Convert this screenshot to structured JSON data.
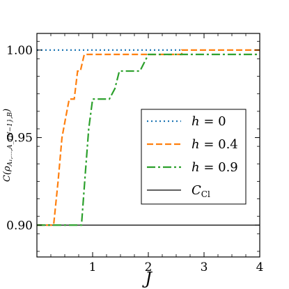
{
  "chart_data": {
    "type": "line",
    "xlabel": "J",
    "ylabel": "C(ρ_{A1,...,AN−1,B})",
    "ylabel_parts": {
      "main": "C(ρ",
      "sub": "A₁,...,A_{N−1},B",
      "close": ")"
    },
    "xlim": [
      0,
      4
    ],
    "ylim": [
      0.8818,
      1.0095
    ],
    "x_ticks": [
      1,
      2,
      3,
      4
    ],
    "x_tick_labels": [
      "1",
      "2",
      "3",
      "4"
    ],
    "y_ticks": [
      0.9,
      0.95,
      1.0
    ],
    "y_tick_labels": [
      "0.90",
      "0.95",
      "1.00"
    ],
    "grid": false,
    "legend_position": "center-right",
    "series": [
      {
        "name": "h = 0",
        "legend": {
          "italic": "h",
          "rest": " = 0"
        },
        "color": "#1f77b4",
        "style": "dotted",
        "x": [
          0,
          2.6
        ],
        "y": [
          1.0,
          1.0
        ]
      },
      {
        "name": "h = 0.4",
        "legend": {
          "italic": "h",
          "rest": " = 0.4"
        },
        "color": "#ff7f0e",
        "style": "dashed",
        "x": [
          0,
          0.3,
          0.38,
          0.45,
          0.52,
          0.58,
          0.67,
          0.73,
          0.78,
          0.85,
          2.6,
          2.6,
          4.0
        ],
        "y": [
          0.9,
          0.9,
          0.925,
          0.95,
          0.962,
          0.972,
          0.972,
          0.988,
          0.988,
          0.9975,
          0.9975,
          1.0,
          1.0
        ]
      },
      {
        "name": "h = 0.9",
        "legend": {
          "italic": "h",
          "rest": " = 0.9"
        },
        "color": "#2ca02c",
        "style": "dashdot",
        "x": [
          0,
          0.8,
          0.87,
          0.93,
          1.0,
          1.15,
          1.3,
          1.4,
          1.48,
          1.58,
          1.85,
          2.0,
          2.05,
          4.0
        ],
        "y": [
          0.9,
          0.9,
          0.93,
          0.955,
          0.972,
          0.972,
          0.972,
          0.978,
          0.988,
          0.988,
          0.988,
          0.9975,
          0.9975,
          0.9975
        ]
      },
      {
        "name": "C_Cl",
        "legend": {
          "italic": "C",
          "sub": "Cl"
        },
        "color": "#000000",
        "style": "solid",
        "x": [
          0,
          4
        ],
        "y": [
          0.9,
          0.9
        ]
      }
    ]
  }
}
